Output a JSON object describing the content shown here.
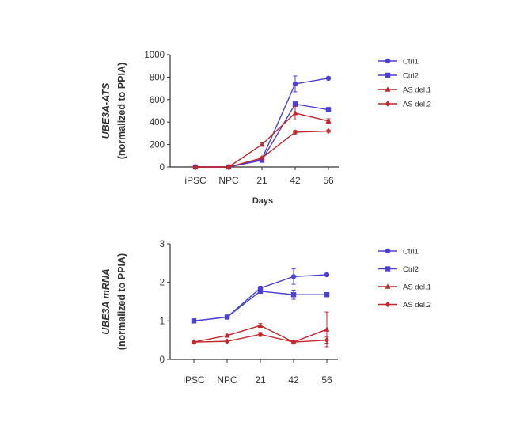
{
  "chart_data": [
    {
      "type": "line",
      "ylabel_gene": "UBE3A-ATS",
      "ylabel_norm": "(normalized to PPIA)",
      "xlabel": "Days",
      "categories": [
        "iPSC",
        "NPC",
        "21",
        "42",
        "56"
      ],
      "ylim": [
        0,
        1000
      ],
      "yticks": [
        0,
        200,
        400,
        600,
        800,
        1000
      ],
      "grid": false,
      "legend_position": "right",
      "series": [
        {
          "name": "Ctrl1",
          "color": "#4b3fd6",
          "values": [
            0,
            0,
            70,
            740,
            790
          ],
          "errors": [
            0,
            0,
            10,
            70,
            10
          ]
        },
        {
          "name": "Ctrl2",
          "color": "#4b3fd6",
          "values": [
            0,
            0,
            60,
            560,
            510
          ],
          "errors": [
            0,
            0,
            10,
            20,
            20
          ]
        },
        {
          "name": "AS del.1",
          "color": "#c1272d",
          "values": [
            0,
            0,
            200,
            480,
            410
          ],
          "errors": [
            0,
            0,
            15,
            60,
            20
          ]
        },
        {
          "name": "AS del.2",
          "color": "#c1272d",
          "values": [
            0,
            0,
            80,
            310,
            320
          ],
          "errors": [
            0,
            0,
            10,
            15,
            10
          ]
        }
      ]
    },
    {
      "type": "line",
      "ylabel_gene": "UBE3A mRNA",
      "ylabel_norm": "(normalized to PPIA)",
      "xlabel": "",
      "categories": [
        "iPSC",
        "NPC",
        "21",
        "42",
        "56"
      ],
      "ylim": [
        0,
        3
      ],
      "yticks": [
        0,
        1,
        2,
        3
      ],
      "grid": false,
      "legend_position": "right",
      "series": [
        {
          "name": "Ctrl1",
          "color": "#4b3fd6",
          "values": [
            1.0,
            1.1,
            1.85,
            2.15,
            2.2
          ],
          "errors": [
            0.03,
            0.03,
            0.05,
            0.2,
            0.03
          ]
        },
        {
          "name": "Ctrl2",
          "color": "#4b3fd6",
          "values": [
            1.0,
            1.1,
            1.77,
            1.68,
            1.68
          ],
          "errors": [
            0.03,
            0.03,
            0.05,
            0.12,
            0.05
          ]
        },
        {
          "name": "AS del.1",
          "color": "#c1272d",
          "values": [
            0.45,
            0.62,
            0.88,
            0.45,
            0.78
          ],
          "errors": [
            0.02,
            0.03,
            0.05,
            0.05,
            0.45
          ]
        },
        {
          "name": "AS del.2",
          "color": "#c1272d",
          "values": [
            0.45,
            0.47,
            0.65,
            0.45,
            0.5
          ],
          "errors": [
            0.02,
            0.03,
            0.05,
            0.03,
            0.08
          ]
        }
      ]
    }
  ]
}
